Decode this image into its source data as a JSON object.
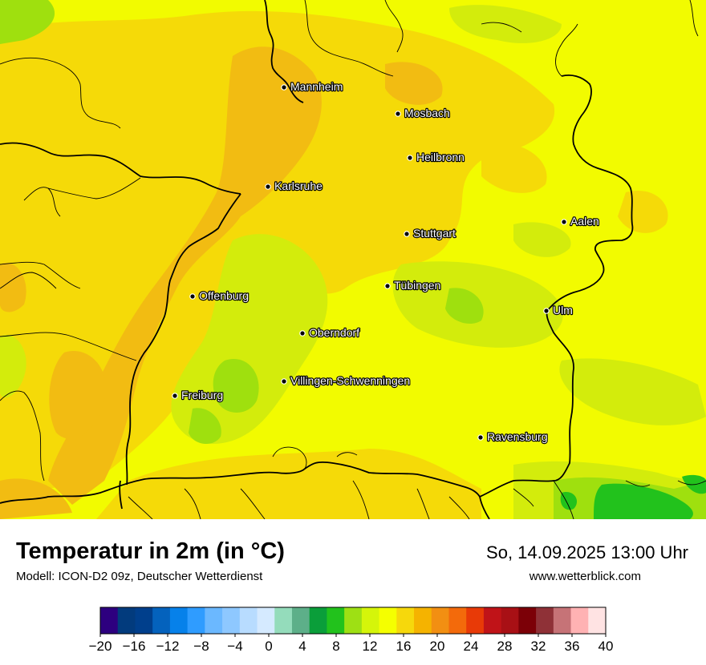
{
  "title": "Temperatur in 2m (in °C)",
  "model": "Modell: ICON-D2 09z, Deutscher Wetterdienst",
  "datetime": "So, 14.09.2025 13:00 Uhr",
  "website": "www.wetterblick.com",
  "cities": [
    {
      "name": "Mannheim",
      "label": "Mannheim"
    },
    {
      "name": "Mosbach",
      "label": "Mosbach"
    },
    {
      "name": "Heilbronn",
      "label": "Heilbronn"
    },
    {
      "name": "Karlsruhe",
      "label": "Karlsruhe"
    },
    {
      "name": "Stuttgart",
      "label": "Stuttgart"
    },
    {
      "name": "Aalen",
      "label": "Aalen"
    },
    {
      "name": "Tuebingen",
      "label": "Tübingen"
    },
    {
      "name": "Offenburg",
      "label": "Offenburg"
    },
    {
      "name": "Ulm",
      "label": "Ulm"
    },
    {
      "name": "Oberndorf",
      "label": "Oberndorf"
    },
    {
      "name": "Villingen-Schwenningen",
      "label": "Villingen-Schwenningen"
    },
    {
      "name": "Freiburg",
      "label": "Freiburg"
    },
    {
      "name": "Ravensburg",
      "label": "Ravensburg"
    }
  ],
  "legend": {
    "min": -20,
    "max": 40,
    "step": 2,
    "tick_labels": [
      "−20",
      "−16",
      "−12",
      "−8",
      "−4",
      "0",
      "4",
      "8",
      "12",
      "16",
      "20",
      "24",
      "28",
      "32",
      "36",
      "40"
    ],
    "colors": [
      "#2d007f",
      "#023b7d",
      "#003f8c",
      "#0462bd",
      "#0681ea",
      "#2f9cff",
      "#6bb8ff",
      "#8ec8ff",
      "#b8dcff",
      "#d5eaff",
      "#94dcbb",
      "#5daf89",
      "#0a9e3a",
      "#22c21c",
      "#9ee014",
      "#d5f50a",
      "#f5ff00",
      "#f6d80c",
      "#f5b300",
      "#f28f12",
      "#f36a0b",
      "#e83a07",
      "#c01318",
      "#a81015",
      "#7c0007",
      "#8f3137",
      "#c67377",
      "#ffb2b3",
      "#ffe3e3"
    ]
  },
  "map_colors": {
    "base": "#f2fb00",
    "warm": "#f5da08",
    "warmer": "#f2bc12",
    "cool": "#d3ec0c",
    "cooler": "#9fe00e",
    "green": "#22c21c"
  }
}
